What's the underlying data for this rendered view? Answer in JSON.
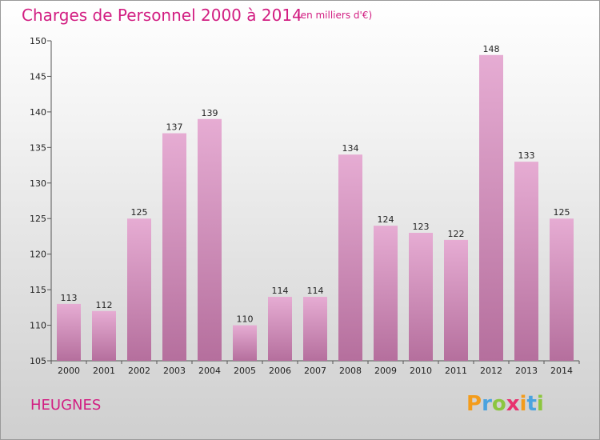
{
  "header": {
    "title": "Charges de Personnel 2000 à 2014",
    "subtitle": "(en milliers d'€)"
  },
  "footer": {
    "commune": "HEUGNES",
    "logo_text": "Proxiti"
  },
  "colors": {
    "title": "#d21e82",
    "bar_top": "#e6acd3",
    "bar_bottom": "#b56f9d",
    "logo_letters": [
      "#f39c1c",
      "#4aa3df",
      "#8cc63f",
      "#e8326e",
      "#f39c1c",
      "#4aa3df",
      "#8cc63f"
    ]
  },
  "chart_data": {
    "type": "bar",
    "categories": [
      "2000",
      "2001",
      "2002",
      "2003",
      "2004",
      "2005",
      "2006",
      "2007",
      "2008",
      "2009",
      "2010",
      "2011",
      "2012",
      "2013",
      "2014"
    ],
    "values": [
      113,
      112,
      125,
      137,
      139,
      110,
      114,
      114,
      134,
      124,
      123,
      122,
      148,
      133,
      125
    ],
    "ylim": [
      105,
      150
    ],
    "yticks": [
      105,
      110,
      115,
      120,
      125,
      130,
      135,
      140,
      145,
      150
    ],
    "grid": false
  }
}
